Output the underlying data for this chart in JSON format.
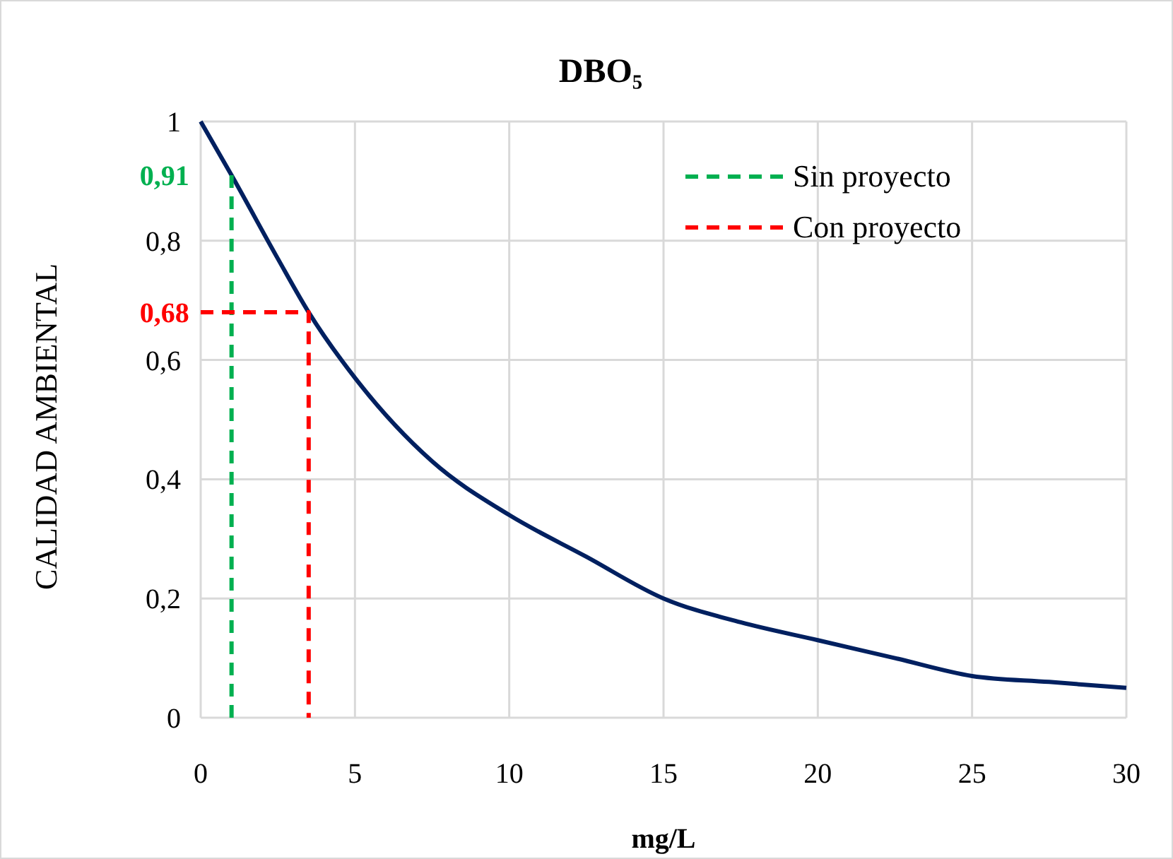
{
  "chart_data": {
    "type": "line",
    "title": "DBO₅",
    "xlabel": "mg/L",
    "ylabel": "CALIDAD AMBIENTAL",
    "xlim": [
      0,
      30
    ],
    "xticks": [
      0,
      5,
      10,
      15,
      20,
      25,
      30
    ],
    "ylim": [
      0,
      1
    ],
    "yticks": [
      0,
      {
        "value": 0.2,
        "label": "0,2"
      },
      {
        "value": 0.4,
        "label": "0,4"
      },
      {
        "value": 0.6,
        "label": "0,6"
      },
      {
        "value": 0.8,
        "label": "0,8"
      },
      1
    ],
    "grid": true,
    "legend": "top right",
    "marker": "none",
    "series": [
      {
        "color": "#002060",
        "line_style": "solid",
        "x": [
          0,
          1,
          2.5,
          3.5,
          5,
          7.5,
          10,
          12.5,
          15,
          17.5,
          20,
          22.5,
          25,
          27.5,
          30
        ],
        "values": [
          1,
          0.91,
          0.77,
          0.68,
          0.57,
          0.43,
          0.34,
          0.27,
          0.2,
          0.16,
          0.13,
          0.1,
          0.07,
          0.06,
          0.05
        ]
      },
      {
        "name": "Sin proyecto",
        "color": "#00b050",
        "line_style": "dashed",
        "x": [
          1,
          1
        ],
        "values": [
          0,
          0.91
        ]
      },
      {
        "name": "Con proyecto",
        "color": "#ff0000",
        "line_style": "dashed",
        "x": [
          0,
          3.5,
          3.5
        ],
        "values": [
          0.68,
          0.68,
          0
        ]
      }
    ],
    "annotations": [
      {
        "text": "0,91",
        "x": 1,
        "y": 0.91
      },
      {
        "text": "0,68",
        "x": 1,
        "y": 0.68
      }
    ]
  }
}
